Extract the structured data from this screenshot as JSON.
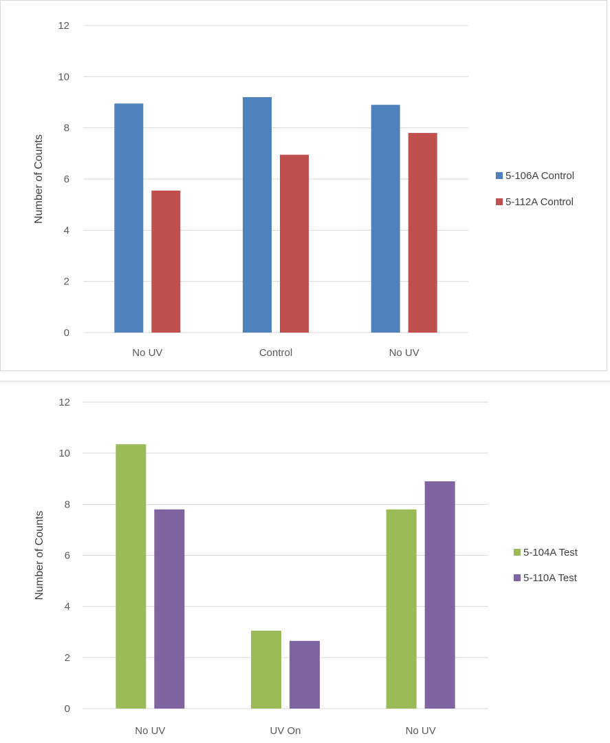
{
  "chart_data": [
    {
      "type": "bar",
      "categories": [
        "No UV",
        "Control",
        "No UV"
      ],
      "series": [
        {
          "name": "5-106A Control",
          "values": [
            8.95,
            9.2,
            8.9
          ],
          "color": "#4f81bd"
        },
        {
          "name": "5-112A Control",
          "values": [
            5.55,
            6.95,
            7.8
          ],
          "color": "#c0504d"
        }
      ],
      "title": "",
      "xlabel": "",
      "ylabel": "Number of Counts",
      "ylim": [
        0,
        12
      ],
      "yticks": [
        "0",
        "2",
        "4",
        "6",
        "8",
        "10",
        "12"
      ],
      "grid": true,
      "legend_position": "right"
    },
    {
      "type": "bar",
      "categories": [
        "No UV",
        "UV On",
        "No UV"
      ],
      "series": [
        {
          "name": "5-104A Test",
          "values": [
            10.35,
            3.05,
            7.8
          ],
          "color": "#9bbb59"
        },
        {
          "name": "5-110A Test",
          "values": [
            7.8,
            2.65,
            8.9
          ],
          "color": "#8064a2"
        }
      ],
      "title": "",
      "xlabel": "",
      "ylabel": "Number of Counts",
      "ylim": [
        0,
        12
      ],
      "yticks": [
        "0",
        "2",
        "4",
        "6",
        "8",
        "10",
        "12"
      ],
      "grid": true,
      "legend_position": "right"
    }
  ]
}
